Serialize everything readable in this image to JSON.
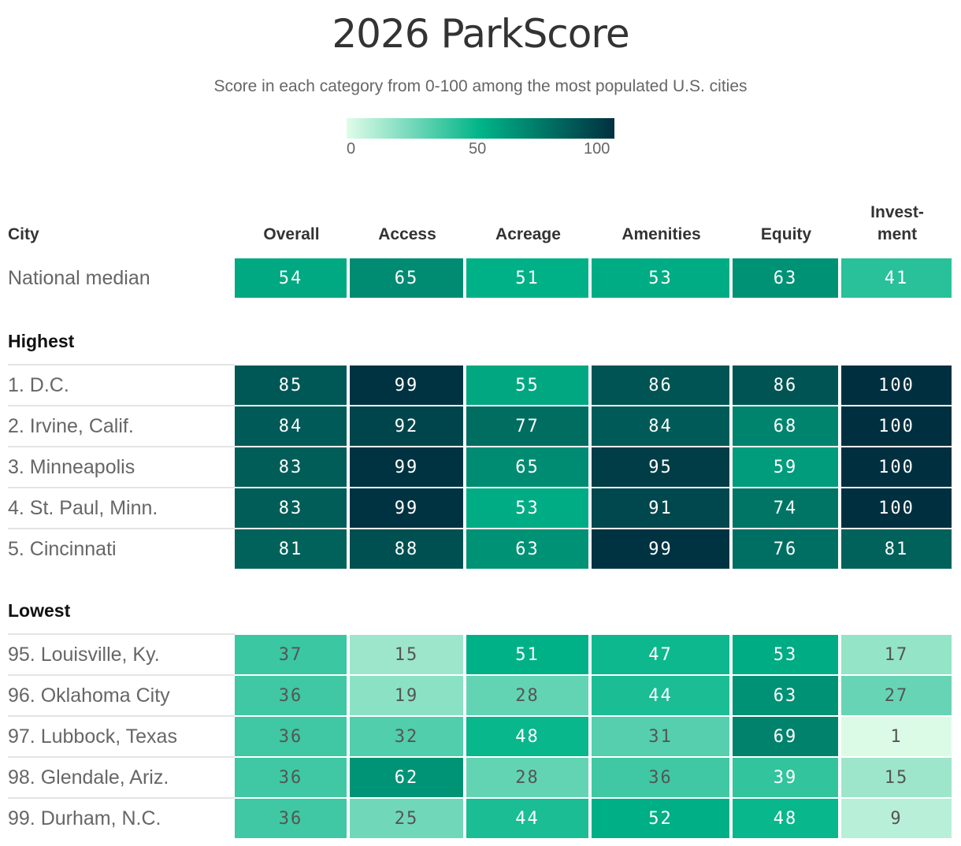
{
  "chart_data": {
    "type": "heatmap",
    "title": "2026 ParkScore",
    "subtitle": "Score in each category from 0-100 among the most populated U.S. cities",
    "legend": {
      "ticks": [
        "0",
        "50",
        "100"
      ],
      "colors": [
        "#e0fce9",
        "#00b488",
        "#003040"
      ]
    },
    "city_header": "City",
    "columns": [
      "Overall",
      "Access",
      "Acreage",
      "Amenities",
      "Equity",
      "Invest-\nment"
    ],
    "median": {
      "label": "National median",
      "values": [
        54,
        65,
        51,
        53,
        63,
        41
      ]
    },
    "groups": [
      {
        "name": "Highest",
        "rows": [
          {
            "city": "1. D.C.",
            "values": [
              85,
              99,
              55,
              86,
              86,
              100
            ]
          },
          {
            "city": "2. Irvine, Calif.",
            "values": [
              84,
              92,
              77,
              84,
              68,
              100
            ]
          },
          {
            "city": "3. Minneapolis",
            "values": [
              83,
              99,
              65,
              95,
              59,
              100
            ]
          },
          {
            "city": "4. St. Paul, Minn.",
            "values": [
              83,
              99,
              53,
              91,
              74,
              100
            ]
          },
          {
            "city": "5. Cincinnati",
            "values": [
              81,
              88,
              63,
              99,
              76,
              81
            ]
          }
        ]
      },
      {
        "name": "Lowest",
        "rows": [
          {
            "city": "95. Louisville, Ky.",
            "values": [
              37,
              15,
              51,
              47,
              53,
              17
            ]
          },
          {
            "city": "96. Oklahoma City",
            "values": [
              36,
              19,
              28,
              44,
              63,
              27
            ]
          },
          {
            "city": "97. Lubbock, Texas",
            "values": [
              36,
              32,
              48,
              31,
              69,
              1
            ]
          },
          {
            "city": "98. Glendale, Ariz.",
            "values": [
              36,
              62,
              28,
              36,
              39,
              15
            ]
          },
          {
            "city": "99. Durham, N.C.",
            "values": [
              36,
              25,
              44,
              52,
              48,
              9
            ]
          }
        ]
      }
    ]
  }
}
